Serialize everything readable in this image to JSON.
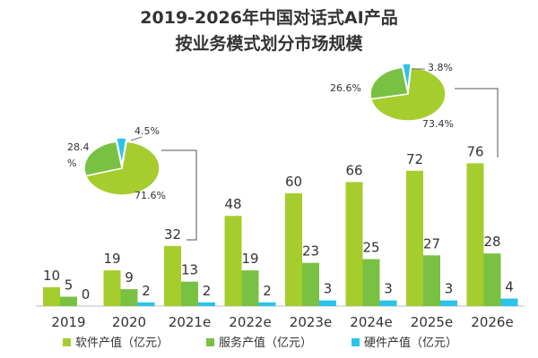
{
  "chart_data": {
    "type": "bar",
    "title_line1": "2019-2026年中国对话式AI产品",
    "title_line2": "按业务模式划分市场规模",
    "categories": [
      "2019",
      "2020",
      "2021e",
      "2022e",
      "2023e",
      "2024e",
      "2025e",
      "2026e"
    ],
    "series": [
      {
        "name": "软件产值（亿元）",
        "color": "#a6cd2e",
        "values": [
          10,
          19,
          32,
          48,
          60,
          66,
          72,
          76
        ]
      },
      {
        "name": "服务产值（亿元）",
        "color": "#79c143",
        "values": [
          5,
          9,
          13,
          19,
          23,
          25,
          27,
          28
        ]
      },
      {
        "name": "硬件产值（亿元）",
        "color": "#2bc3ea",
        "values": [
          0,
          2,
          2,
          2,
          3,
          3,
          3,
          4
        ]
      }
    ],
    "ylim": [
      0,
      80
    ],
    "pies": [
      {
        "year": "2021e",
        "slices": [
          {
            "label": "71.6%",
            "value": 71.6,
            "color": "#a6cd2e"
          },
          {
            "label": "28.4 %",
            "value": 28.4,
            "color": "#79c143"
          },
          {
            "label": "4.5%",
            "value": 4.5,
            "color": "#2bc3ea"
          }
        ]
      },
      {
        "year": "2026e",
        "slices": [
          {
            "label": "73.4%",
            "value": 73.4,
            "color": "#a6cd2e"
          },
          {
            "label": "26.6%",
            "value": 26.6,
            "color": "#79c143"
          },
          {
            "label": "3.8%",
            "value": 3.8,
            "color": "#2bc3ea"
          }
        ]
      }
    ]
  }
}
